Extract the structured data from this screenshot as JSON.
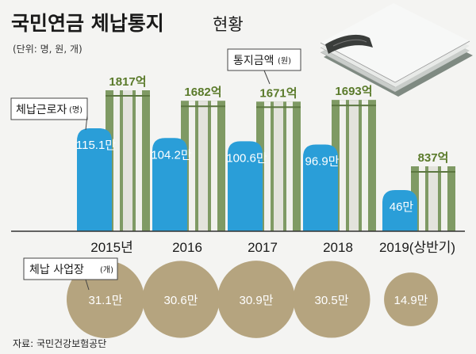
{
  "title_main": "국민연금 체납통지",
  "title_sub": "현황",
  "unit_note": "(단위: 명, 원, 개)",
  "label_workers": "체납근로자",
  "label_workers_unit": "(명)",
  "label_notice": "통지금액",
  "label_notice_unit": "(원)",
  "label_businesses": "체납 사업장",
  "label_businesses_unit": "(개)",
  "source": "자료: 국민건강보험공단",
  "colors": {
    "blue": "#2a9ed8",
    "green": "#7f9a64",
    "green_dark": "#5c7740",
    "tan": "#b5a47f",
    "baseline": "#333333"
  },
  "chart_data": {
    "type": "bar",
    "categories": [
      "2015년",
      "2016",
      "2017",
      "2018",
      "2019(상반기)"
    ],
    "series": [
      {
        "name": "체납근로자",
        "values": [
          1151000,
          1042000,
          1006000,
          969000,
          460000
        ],
        "labels": [
          "115.1만",
          "104.2만",
          "100.6만",
          "96.9만",
          "46만"
        ]
      },
      {
        "name": "통지금액",
        "values": [
          181700000000,
          168200000000,
          167100000000,
          169300000000,
          83700000000
        ],
        "labels": [
          "1817억",
          "1682억",
          "1671억",
          "1693억",
          "837억"
        ]
      },
      {
        "name": "체납 사업장",
        "values": [
          311000,
          306000,
          309000,
          305000,
          149000
        ],
        "labels": [
          "31.1만",
          "30.6만",
          "30.9만",
          "30.5만",
          "14.9만"
        ]
      }
    ]
  }
}
